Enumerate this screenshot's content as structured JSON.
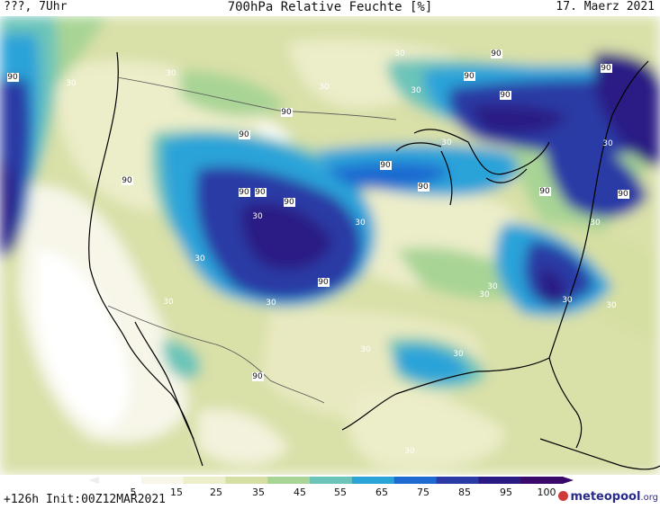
{
  "header": {
    "left": "???, 7Uhr",
    "title": "700hPa Relative Feuchte [%]",
    "date": "17. Maerz 2021"
  },
  "footer": {
    "init": "+126h Init:00Z12MAR2021",
    "logo_name": "meteopool",
    "logo_tld": ".org"
  },
  "legend": {
    "labels": [
      "5",
      "15",
      "25",
      "35",
      "45",
      "55",
      "65",
      "75",
      "85",
      "95",
      "100"
    ],
    "colors": [
      "#ffffff",
      "#f7f6e8",
      "#ecedc9",
      "#d6dfa2",
      "#a8d495",
      "#6cc4b9",
      "#2aa3d9",
      "#1d6bd0",
      "#2c3aa5",
      "#2a1a84",
      "#3a0a6a"
    ]
  },
  "contour_labels": [
    "90",
    "30",
    "30",
    "30",
    "30",
    "90",
    "90",
    "90",
    "30",
    "90",
    "90",
    "90",
    "30",
    "90",
    "30",
    "90",
    "90",
    "90",
    "90",
    "30",
    "90",
    "90",
    "30",
    "90",
    "30",
    "30",
    "90",
    "30",
    "30",
    "30",
    "30",
    "30",
    "30",
    "30",
    "30",
    "90",
    "30"
  ]
}
